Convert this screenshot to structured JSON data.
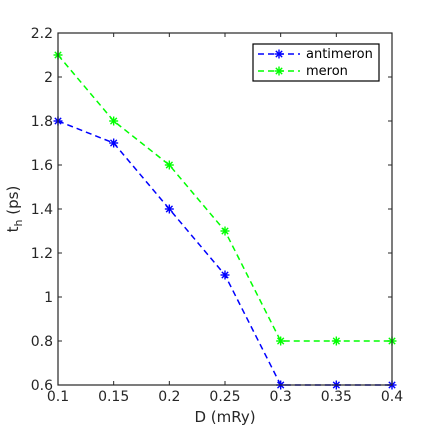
{
  "chart_data": {
    "type": "line",
    "xlabel": "D (mRy)",
    "ylabel_main": "t",
    "ylabel_sub": "h",
    "ylabel_rest": " (ps)",
    "xlim": [
      0.1,
      0.4
    ],
    "ylim": [
      0.6,
      2.2
    ],
    "xticks": [
      0.1,
      0.15,
      0.2,
      0.25,
      0.3,
      0.35,
      0.4
    ],
    "xtick_labels": [
      "0.1",
      "0.15",
      "0.2",
      "0.25",
      "0.3",
      "0.35",
      "0.4"
    ],
    "yticks": [
      0.6,
      0.8,
      1.0,
      1.2,
      1.4,
      1.6,
      1.8,
      2.0,
      2.2
    ],
    "ytick_labels": [
      "0.6",
      "0.8",
      "1",
      "1.2",
      "1.4",
      "1.6",
      "1.8",
      "2",
      "2.2"
    ],
    "grid": false,
    "legend_position": "top-right",
    "x": [
      0.1,
      0.15,
      0.2,
      0.25,
      0.3,
      0.35,
      0.4
    ],
    "series": [
      {
        "name": "antimeron",
        "color": "#0000ff",
        "marker": "asterisk",
        "line": "dashed",
        "values": [
          1.8,
          1.7,
          1.4,
          1.1,
          0.6,
          0.6,
          0.6
        ]
      },
      {
        "name": "meron",
        "color": "#00ff00",
        "marker": "asterisk",
        "line": "dashed",
        "values": [
          2.1,
          1.8,
          1.6,
          1.3,
          0.8,
          0.8,
          0.8
        ]
      }
    ]
  }
}
